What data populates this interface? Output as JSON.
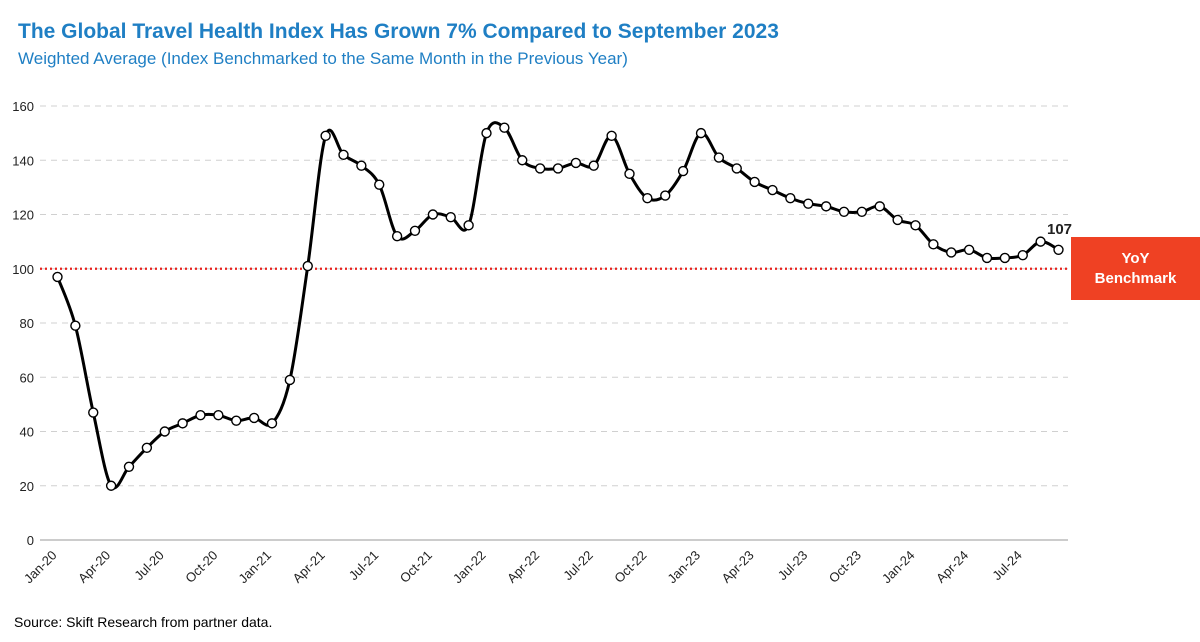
{
  "header": {
    "title": "The Global Travel Health Index Has Grown 7% Compared to September 2023",
    "subtitle": "Weighted Average (Index Benchmarked to the Same Month in the Previous Year)"
  },
  "footer": {
    "source": "Source: Skift Research from partner data."
  },
  "benchmark": {
    "line1": "YoY",
    "line2": "Benchmark",
    "value": 100,
    "color": "#ef4123"
  },
  "colors": {
    "title": "#1f7fc4",
    "line": "#000000",
    "benchmark_line": "#e8231f"
  },
  "chart_data": {
    "type": "line",
    "title": "The Global Travel Health Index Has Grown 7% Compared to September 2023",
    "subtitle": "Weighted Average (Index Benchmarked to the Same Month in the Previous Year)",
    "xlabel": "",
    "ylabel": "",
    "ylim": [
      0,
      160
    ],
    "yticks": [
      0,
      20,
      40,
      60,
      80,
      100,
      120,
      140,
      160
    ],
    "grid": "horizontal dashed",
    "x_tick_labels": [
      "Jan-20",
      "Apr-20",
      "Jul-20",
      "Oct-20",
      "Jan-21",
      "Apr-21",
      "Jul-21",
      "Oct-21",
      "Jan-22",
      "Apr-22",
      "Jul-22",
      "Oct-22",
      "Jan-23",
      "Apr-23",
      "Jul-23",
      "Oct-23",
      "Jan-24",
      "Apr-24",
      "Jul-24"
    ],
    "x": [
      "Jan-20",
      "Feb-20",
      "Mar-20",
      "Apr-20",
      "May-20",
      "Jun-20",
      "Jul-20",
      "Aug-20",
      "Sep-20",
      "Oct-20",
      "Nov-20",
      "Dec-20",
      "Jan-21",
      "Feb-21",
      "Mar-21",
      "Apr-21",
      "May-21",
      "Jun-21",
      "Jul-21",
      "Aug-21",
      "Sep-21",
      "Oct-21",
      "Nov-21",
      "Dec-21",
      "Jan-22",
      "Feb-22",
      "Mar-22",
      "Apr-22",
      "May-22",
      "Jun-22",
      "Jul-22",
      "Aug-22",
      "Sep-22",
      "Oct-22",
      "Nov-22",
      "Dec-22",
      "Jan-23",
      "Feb-23",
      "Mar-23",
      "Apr-23",
      "May-23",
      "Jun-23",
      "Jul-23",
      "Aug-23",
      "Sep-23",
      "Oct-23",
      "Nov-23",
      "Dec-23",
      "Jan-24",
      "Feb-24",
      "Mar-24",
      "Apr-24",
      "May-24",
      "Jun-24",
      "Jul-24",
      "Aug-24",
      "Sep-24"
    ],
    "series": [
      {
        "values": [
          97,
          79,
          47,
          20,
          27,
          34,
          40,
          43,
          46,
          46,
          44,
          45,
          43,
          59,
          101,
          149,
          142,
          138,
          131,
          112,
          114,
          120,
          119,
          116,
          150,
          152,
          140,
          137,
          137,
          139,
          138,
          149,
          135,
          126,
          127,
          136,
          150,
          141,
          137,
          132,
          129,
          126,
          124,
          123,
          121,
          121,
          123,
          118,
          116,
          109,
          106,
          107,
          104,
          104,
          105,
          110,
          107
        ]
      }
    ],
    "annotations": [
      {
        "x": "Sep-24",
        "text": "107"
      }
    ],
    "reference_line": {
      "y": 100,
      "style": "dotted red",
      "label": "YoY Benchmark"
    }
  }
}
